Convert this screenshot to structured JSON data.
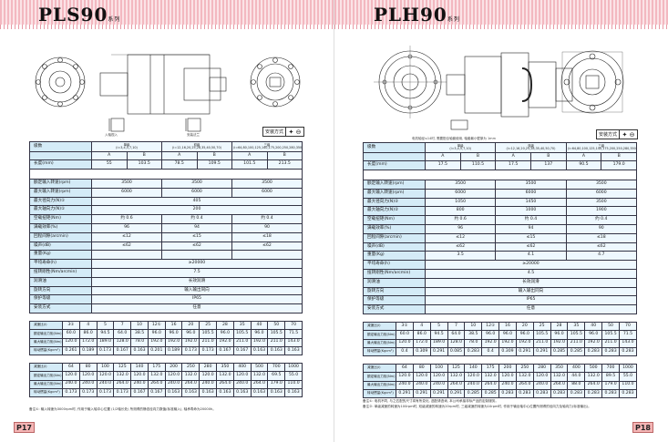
{
  "left": {
    "title": "PLS90",
    "series": "系列",
    "mount_label": "安装方式",
    "mount_icon": "✦ ⊖",
    "page": "P17",
    "captions": [
      "入轴视入",
      "安装法兰"
    ],
    "spec": {
      "stage_label": "级数",
      "stages": [
        "单级\n(i=3,4,5,7,10)",
        "双级\n(i=12,16,20,25,28,35,40,50,70)",
        "三级\n(i=64,80,100,125,140,175,200,250,280,350,400,500,700,1000)"
      ],
      "ab": [
        "A",
        "B",
        "A",
        "B",
        "A",
        "B"
      ],
      "length_label": "长度(mm)",
      "length": [
        "55",
        "103.5",
        "78.5",
        "109.5",
        "101.5",
        "213.5"
      ],
      "rows": [
        {
          "label": "额定输入转速(rpm)",
          "vals": [
            "3500",
            "3500",
            "3500"
          ]
        },
        {
          "label": "最大输入转速(rpm)",
          "vals": [
            "6000",
            "6000",
            "6000"
          ]
        },
        {
          "label": "最大径向力(N)①",
          "vals": [
            "405"
          ]
        },
        {
          "label": "最大轴向力(N)①",
          "vals": [
            "200"
          ]
        },
        {
          "label": "空载扭矩(Nm)",
          "vals": [
            "约 0.6",
            "约 0.4",
            "约 0.4"
          ]
        },
        {
          "label": "满载效率(%)",
          "vals": [
            "96",
            "94",
            "90"
          ]
        },
        {
          "label": "回程间隙(arcmin)",
          "vals": [
            "≤12",
            "≤15",
            "≤18"
          ]
        },
        {
          "label": "噪声(dB)",
          "vals": [
            "≤62",
            "≤62",
            "≤62"
          ]
        },
        {
          "label": "重量(Kg)",
          "vals": [
            "",
            "",
            ""
          ]
        },
        {
          "label": "平均寿命(h)",
          "vals": [
            "≥20000"
          ]
        },
        {
          "label": "扭转刚性(Nm/arcmin)",
          "vals": [
            "7.5"
          ]
        },
        {
          "label": "润滑油",
          "vals": [
            "长效润滑"
          ]
        },
        {
          "label": "旋转方向",
          "vals": [
            "输入输出同向"
          ]
        },
        {
          "label": "保护等级",
          "vals": [
            "IP65"
          ]
        },
        {
          "label": "安装方式",
          "vals": [
            "任意"
          ]
        }
      ]
    },
    "ratio_tables": [
      {
        "rows": [
          {
            "label": "减速比(i)",
            "vals": [
              "3①",
              "4",
              "5",
              "7",
              "10",
              "12①",
              "16",
              "20",
              "25",
              "28",
              "35",
              "40",
              "50",
              "70"
            ]
          },
          {
            "label": "额定输出力矩(Nm)",
            "vals": [
              "60.0",
              "86.0",
              "94.5",
              "64.0",
              "38.5",
              "96.0",
              "96.0",
              "96.0",
              "105.5",
              "96.0",
              "105.5",
              "96.0",
              "105.5",
              "71.5"
            ]
          },
          {
            "label": "最大输出力矩(Nm)",
            "vals": [
              "120.0",
              "172.0",
              "189.0",
              "128.0",
              "78.0",
              "192.0",
              "192.0",
              "192.0",
              "211.0",
              "192.0",
              "211.0",
              "192.0",
              "211.0",
              "143.0"
            ]
          },
          {
            "label": "转动惯量(Kgcm²)",
            "vals": [
              "0.261",
              "0.189",
              "0.173",
              "0.167",
              "0.163",
              "0.201",
              "0.189",
              "0.173",
              "0.173",
              "0.167",
              "0.167",
              "0.163",
              "0.163",
              "0.163"
            ]
          }
        ]
      },
      {
        "rows": [
          {
            "label": "减速比(i)",
            "vals": [
              "64",
              "80",
              "100",
              "125",
              "140",
              "175",
              "200",
              "250",
              "280",
              "350",
              "400",
              "500",
              "700",
              "1000"
            ]
          },
          {
            "label": "额定输出力矩(Nm)",
            "vals": [
              "120.0",
              "120.0",
              "120.0",
              "132.0",
              "120.0",
              "132.0",
              "120.0",
              "132.0",
              "120.0",
              "132.0",
              "120.0",
              "132.0",
              "69.5",
              "55.0"
            ]
          },
          {
            "label": "最大输出力矩(Nm)",
            "vals": [
              "240.0",
              "240.0",
              "240.0",
              "264.0",
              "240.0",
              "264.0",
              "240.0",
              "264.0",
              "240.0",
              "264.0",
              "240.0",
              "264.0",
              "179.0",
              "110.0"
            ]
          },
          {
            "label": "转动惯量(Kgcm²)",
            "vals": [
              "0.173",
              "0.173",
              "0.173",
              "0.173",
              "0.167",
              "0.167",
              "0.163",
              "0.163",
              "0.163",
              "0.163",
              "0.163",
              "0.163",
              "0.163",
              "0.163"
            ]
          }
        ]
      }
    ],
    "notes": [
      "备注①: 输入转速为3000rpm时, 作用于输入轴中心位置 (1/2轴长处) 所测得的静态径向力数值(标准输入), 轴承寿命为20000h。"
    ]
  },
  "right": {
    "title": "PLH90",
    "series": "系列",
    "mount_label": "安装方式",
    "mount_icon": "✦ ⊖",
    "page": "P18",
    "captions": [
      "电机轴径≤14时, 需要配合轴套使用, 轴套最小壁厚为 1mm"
    ],
    "spec": {
      "stage_label": "级数",
      "stages": [
        "单级\n(i=3,4,5,7,10)",
        "双级\n(i=12,16,20,25,28,35,40,50,70)",
        "三级\n(i=64,80,100,125,140,175,200,250,280,350,400,500,700,1000)"
      ],
      "ab": [
        "A",
        "B",
        "A",
        "B",
        "A",
        "B"
      ],
      "length_label": "长度(mm)",
      "length": [
        "17.5",
        "110.5",
        "17.5",
        "137",
        "90.5",
        "179.0"
      ],
      "rows": [
        {
          "label": "额定输入转速(rpm)",
          "vals": [
            "3500",
            "3500",
            "3500"
          ]
        },
        {
          "label": "最大输入转速(rpm)",
          "vals": [
            "6000",
            "6000",
            "6000"
          ]
        },
        {
          "label": "最大径向力(N)②",
          "vals": [
            "1050",
            "1450",
            "3500"
          ]
        },
        {
          "label": "最大轴向力(N)②",
          "vals": [
            "800",
            "1000",
            "1900"
          ]
        },
        {
          "label": "空载扭矩(Nm)",
          "vals": [
            "约 0.6",
            "约 0.4",
            "约 0.4"
          ]
        },
        {
          "label": "满载效率(%)",
          "vals": [
            "96",
            "94",
            "90"
          ]
        },
        {
          "label": "回程间隙(arcmin)",
          "vals": [
            "≤12",
            "≤15",
            "≤18"
          ]
        },
        {
          "label": "噪声(dB)",
          "vals": [
            "≤62",
            "≤62",
            "≤62"
          ]
        },
        {
          "label": "重量(Kg)",
          "vals": [
            "3.5",
            "4.1",
            "4.7"
          ]
        },
        {
          "label": "平均寿命(h)",
          "vals": [
            "≥20000"
          ]
        },
        {
          "label": "扭转刚性(Nm/arcmin)",
          "vals": [
            "4.5"
          ]
        },
        {
          "label": "润滑油",
          "vals": [
            "长效润滑"
          ]
        },
        {
          "label": "旋转方向",
          "vals": [
            "输入输出同向"
          ]
        },
        {
          "label": "保护等级",
          "vals": [
            "IP65"
          ]
        },
        {
          "label": "安装方式",
          "vals": [
            "任意"
          ]
        }
      ]
    },
    "ratio_tables": [
      {
        "rows": [
          {
            "label": "减速比(i)",
            "vals": [
              "3①",
              "4",
              "5",
              "7",
              "10",
              "12①",
              "16",
              "20",
              "25",
              "28",
              "35",
              "40",
              "50",
              "70"
            ]
          },
          {
            "label": "额定输出力矩(Nm)",
            "vals": [
              "60.0",
              "86.0",
              "94.5",
              "64.0",
              "38.5",
              "96.0",
              "96.0",
              "96.0",
              "105.5",
              "96.0",
              "105.5",
              "96.0",
              "105.5",
              "71.5"
            ]
          },
          {
            "label": "最大输出力矩(Nm)",
            "vals": [
              "120.0",
              "172.0",
              "189.0",
              "128.0",
              "78.0",
              "192.0",
              "192.0",
              "192.0",
              "211.0",
              "192.0",
              "211.0",
              "192.0",
              "211.0",
              "143.0"
            ]
          },
          {
            "label": "转动惯量(Kgcm²)",
            "vals": [
              "0.4",
              "0.309",
              "0.291",
              "0.085",
              "0.283",
              "0.4",
              "0.309",
              "0.291",
              "0.291",
              "0.285",
              "0.285",
              "0.283",
              "0.283",
              "0.283"
            ]
          }
        ]
      },
      {
        "rows": [
          {
            "label": "减速比(i)",
            "vals": [
              "64",
              "80",
              "100",
              "125",
              "140",
              "175",
              "200",
              "250",
              "280",
              "350",
              "400",
              "500",
              "700",
              "1000"
            ]
          },
          {
            "label": "额定输出力矩(Nm)",
            "vals": [
              "120.0",
              "120.0",
              "120.0",
              "132.0",
              "120.0",
              "132.0",
              "120.0",
              "132.0",
              "120.0",
              "132.0",
              "44.0",
              "132.0",
              "89.5",
              "55.0"
            ]
          },
          {
            "label": "最大输出力矩(Nm)",
            "vals": [
              "240.0",
              "240.0",
              "240.0",
              "264.0",
              "240.0",
              "264.0",
              "240.0",
              "264.0",
              "240.0",
              "264.0",
              "88.0",
              "264.0",
              "179.0",
              "110.0"
            ]
          },
          {
            "label": "转动惯量(Kgcm²)",
            "vals": [
              "0.291",
              "0.291",
              "0.291",
              "0.291",
              "0.285",
              "0.285",
              "0.283",
              "0.283",
              "0.283",
              "0.283",
              "0.283",
              "0.283",
              "0.283",
              "0.283"
            ]
          }
        ]
      }
    ],
    "notes": [
      "备注①: 电机不同, 与之匹配的尺寸将有所变化, 选配请咨询, 本公司承接非标产品的定制服务。",
      "备注②: 单级减速的转速为100rpm时, 双级减速的转速为20rpm时, 三级减速的转速为10rpm时, 作用于输出轴中心位置所测得的径向力及轴向力(标准输出)。"
    ]
  }
}
